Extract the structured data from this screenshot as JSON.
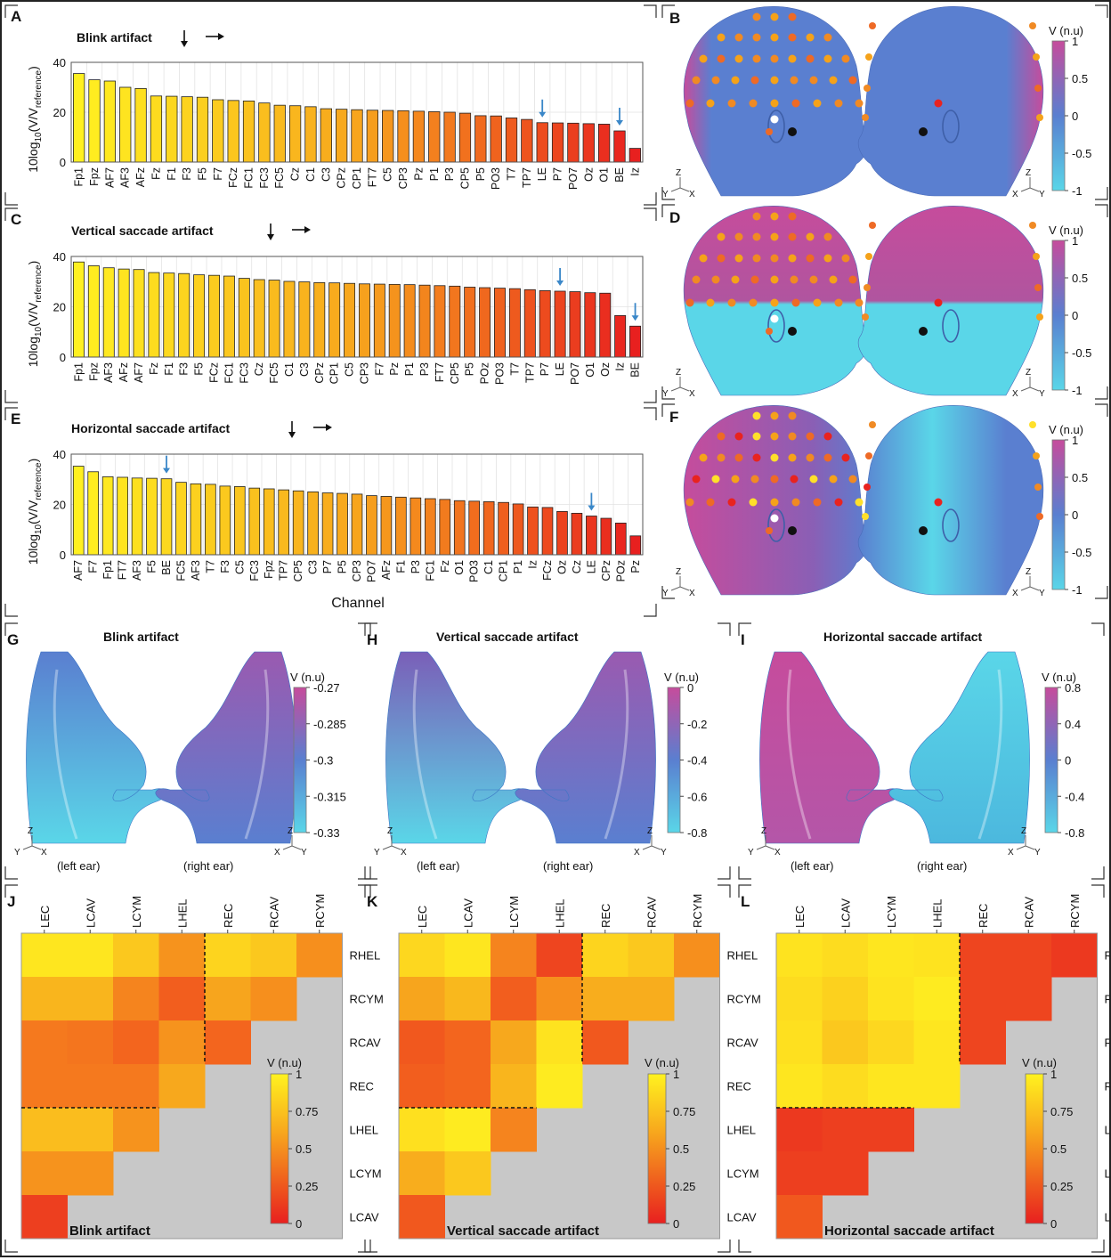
{
  "colors": {
    "yellow": "#ffee22",
    "orange": "#f5a21a",
    "red": "#e8231f",
    "magenta": "#c64c9c",
    "blue": "#5a7fd0",
    "cyan": "#5ad6e8",
    "grey": "#c8c8c8"
  },
  "panel_letters": {
    "A": "A",
    "B": "B",
    "C": "C",
    "D": "D",
    "E": "E",
    "F": "F",
    "G": "G",
    "H": "H",
    "I": "I",
    "J": "J",
    "K": "K",
    "L": "L"
  },
  "bar_ylabel": "10log10(V/Vreference)",
  "bar_xlabel": "Channel",
  "colorbar_label": "V (n.u)",
  "axis_triads": {
    "left": [
      "Z",
      "Y",
      "X"
    ],
    "right": [
      "Z",
      "X",
      "Y"
    ]
  },
  "ear_labels": {
    "left": "(left ear)",
    "right": "(right ear)"
  },
  "chart_data": [
    {
      "id": "A",
      "type": "bar",
      "title": "Blink artifact",
      "ylim": [
        0,
        40
      ],
      "yticks": [
        0,
        20,
        40
      ],
      "categories": [
        "Fp1",
        "Fpz",
        "AF7",
        "AF3",
        "AFz",
        "Fz",
        "F1",
        "F3",
        "F5",
        "F7",
        "FCz",
        "FC1",
        "FC3",
        "FC5",
        "Cz",
        "C1",
        "C3",
        "CPz",
        "CP1",
        "FT7",
        "C5",
        "CP3",
        "Pz",
        "P1",
        "P3",
        "CP5",
        "P5",
        "PO3",
        "T7",
        "TP7",
        "LE",
        "P7",
        "PO7",
        "Oz",
        "O1",
        "BE",
        "Iz"
      ],
      "values": [
        35.5,
        33,
        32.5,
        30,
        29.5,
        26.5,
        26.4,
        26.2,
        26,
        25,
        24.7,
        24.5,
        23.7,
        22.8,
        22.6,
        22.2,
        21.4,
        21.2,
        21,
        20.8,
        20.7,
        20.6,
        20.4,
        20.2,
        20,
        19.6,
        18.6,
        18.5,
        17.7,
        17.1,
        15.8,
        15.7,
        15.6,
        15.4,
        15.2,
        12.5,
        5.5
      ],
      "marked": [
        "LE",
        "BE"
      ]
    },
    {
      "id": "C",
      "type": "bar",
      "title": "Vertical saccade artifact",
      "ylim": [
        0,
        40
      ],
      "yticks": [
        0,
        20,
        40
      ],
      "categories": [
        "Fp1",
        "Fpz",
        "AF3",
        "AFz",
        "AF7",
        "Fz",
        "F1",
        "F3",
        "F5",
        "FCz",
        "FC1",
        "FC3",
        "Cz",
        "FC5",
        "C1",
        "C3",
        "CPz",
        "CP1",
        "C5",
        "CP3",
        "F7",
        "Pz",
        "P1",
        "P3",
        "FT7",
        "CP5",
        "P5",
        "POz",
        "PO3",
        "T7",
        "TP7",
        "P7",
        "LE",
        "PO7",
        "O1",
        "Oz",
        "Iz",
        "BE"
      ],
      "values": [
        37.8,
        36.3,
        35.5,
        35,
        34.8,
        33.6,
        33.4,
        33.2,
        32.7,
        32.5,
        32.2,
        31.3,
        30.8,
        30.6,
        30.1,
        29.9,
        29.6,
        29.5,
        29.3,
        29.1,
        29,
        28.9,
        28.8,
        28.6,
        28.4,
        28.2,
        27.8,
        27.6,
        27.4,
        27.2,
        26.8,
        26.4,
        26.2,
        26,
        25.6,
        25.4,
        16.5,
        12.3
      ],
      "marked": [
        "LE",
        "BE"
      ]
    },
    {
      "id": "E",
      "type": "bar",
      "title": "Horizontal saccade artifact",
      "ylim": [
        0,
        40
      ],
      "yticks": [
        0,
        20,
        40
      ],
      "categories": [
        "AF7",
        "F7",
        "Fp1",
        "FT7",
        "AF3",
        "F5",
        "BE",
        "FC5",
        "AF3",
        "T7",
        "F3",
        "C5",
        "FC3",
        "Fpz",
        "TP7",
        "CP5",
        "C3",
        "P7",
        "P5",
        "CP3",
        "PO7",
        "AFz",
        "F1",
        "P3",
        "FC1",
        "Fz",
        "O1",
        "PO3",
        "C1",
        "CP1",
        "P1",
        "Iz",
        "FCz",
        "Oz",
        "Cz",
        "LE",
        "CPz",
        "POz",
        "Pz"
      ],
      "values": [
        35.2,
        33,
        31,
        30.8,
        30.5,
        30.4,
        30.2,
        28.8,
        28.2,
        28,
        27.3,
        27.1,
        26.5,
        26.2,
        25.8,
        25.4,
        25,
        24.6,
        24.4,
        24.1,
        23.5,
        23.2,
        22.9,
        22.6,
        22.3,
        22,
        21.5,
        21.3,
        21.1,
        20.8,
        20.2,
        19,
        18.8,
        17.2,
        16.5,
        15.4,
        14.5,
        12.6,
        7.5
      ],
      "marked": [
        "BE",
        "LE"
      ]
    },
    {
      "id": "J",
      "type": "heatmap",
      "title": "Blink artifact",
      "cols": [
        "LEC",
        "LCAV",
        "LCYM",
        "LHEL",
        "REC",
        "RCAV",
        "RCYM"
      ],
      "rows": [
        "RHEL",
        "RCYM",
        "RCAV",
        "REC",
        "LHEL",
        "LCYM",
        "LCAV"
      ],
      "z": [
        [
          0.92,
          0.92,
          0.72,
          0.42,
          0.8,
          0.72,
          0.4
        ],
        [
          0.6,
          0.6,
          0.35,
          0.2,
          0.5,
          0.4,
          null
        ],
        [
          0.3,
          0.28,
          0.22,
          0.42,
          0.22,
          null,
          null
        ],
        [
          0.3,
          0.3,
          0.3,
          0.52,
          null,
          null,
          null
        ],
        [
          0.65,
          0.65,
          0.42,
          null,
          null,
          null,
          null
        ],
        [
          0.42,
          0.42,
          null,
          null,
          null,
          null,
          null
        ],
        [
          0.1,
          null,
          null,
          null,
          null,
          null,
          null
        ]
      ],
      "colorbar_ticks": [
        "0",
        "0.25",
        "0.5",
        "0.75",
        "1"
      ]
    },
    {
      "id": "K",
      "type": "heatmap",
      "title": "Vertical saccade artifact",
      "cols": [
        "LEC",
        "LCAV",
        "LCYM",
        "LHEL",
        "REC",
        "RCAV",
        "RCYM"
      ],
      "rows": [
        "RHEL",
        "RCYM",
        "RCAV",
        "REC",
        "LHEL",
        "LCYM",
        "LCAV"
      ],
      "z": [
        [
          0.82,
          0.92,
          0.35,
          0.12,
          0.8,
          0.72,
          0.4
        ],
        [
          0.5,
          0.62,
          0.2,
          0.4,
          0.55,
          0.55,
          null
        ],
        [
          0.18,
          0.22,
          0.52,
          0.9,
          0.18,
          null,
          null
        ],
        [
          0.2,
          0.22,
          0.6,
          0.95,
          null,
          null,
          null
        ],
        [
          0.88,
          0.95,
          0.35,
          null,
          null,
          null,
          null
        ],
        [
          0.55,
          0.72,
          null,
          null,
          null,
          null,
          null
        ],
        [
          0.18,
          null,
          null,
          null,
          null,
          null,
          null
        ]
      ],
      "colorbar_ticks": [
        "0",
        "0.25",
        "0.5",
        "0.75",
        "1"
      ]
    },
    {
      "id": "L",
      "type": "heatmap",
      "title": "Horizontal saccade artifact",
      "cols": [
        "LEC",
        "LCAV",
        "LCYM",
        "LHEL",
        "REC",
        "RCAV",
        "RCYM"
      ],
      "rows": [
        "RHEL",
        "RCYM",
        "RCAV",
        "REC",
        "LHEL",
        "LCYM",
        "LCAV"
      ],
      "z": [
        [
          0.9,
          0.85,
          0.92,
          0.9,
          0.12,
          0.12,
          0.08
        ],
        [
          0.85,
          0.78,
          0.9,
          0.95,
          0.12,
          0.12,
          null
        ],
        [
          0.88,
          0.72,
          0.82,
          0.92,
          0.12,
          null,
          null
        ],
        [
          0.92,
          0.85,
          0.92,
          0.92,
          null,
          null,
          null
        ],
        [
          0.08,
          0.1,
          0.1,
          null,
          null,
          null,
          null
        ],
        [
          0.1,
          0.1,
          null,
          null,
          null,
          null,
          null
        ],
        [
          0.18,
          null,
          null,
          null,
          null,
          null,
          null
        ]
      ],
      "colorbar_ticks": [
        "0",
        "0.25",
        "0.5",
        "0.75",
        "1"
      ]
    },
    {
      "id": "B",
      "type": "heatmap",
      "title": "",
      "colorbar_ticks": [
        "1",
        "0.5",
        "0",
        "-0.5",
        "-1"
      ],
      "field": "Blink artifact topography"
    },
    {
      "id": "D",
      "type": "heatmap",
      "title": "",
      "colorbar_ticks": [
        "1",
        "0.5",
        "0",
        "-0.5",
        "-1"
      ],
      "field": "Vertical saccade artifact topography"
    },
    {
      "id": "F",
      "type": "heatmap",
      "title": "",
      "colorbar_ticks": [
        "1",
        "0.5",
        "0",
        "-0.5",
        "-1"
      ],
      "field": "Horizontal saccade artifact topography"
    },
    {
      "id": "G",
      "type": "heatmap",
      "title": "Blink artifact",
      "colorbar_ticks": [
        "-0.27",
        "-0.285",
        "-0.3",
        "-0.315",
        "-0.33"
      ]
    },
    {
      "id": "H",
      "type": "heatmap",
      "title": "Vertical saccade artifact",
      "colorbar_ticks": [
        "0",
        "-0.2",
        "-0.4",
        "-0.6",
        "-0.8"
      ]
    },
    {
      "id": "I",
      "type": "heatmap",
      "title": "Horizontal saccade artifact",
      "colorbar_ticks": [
        "0.8",
        "0.4",
        "0",
        "-0.4",
        "-0.8"
      ]
    }
  ]
}
